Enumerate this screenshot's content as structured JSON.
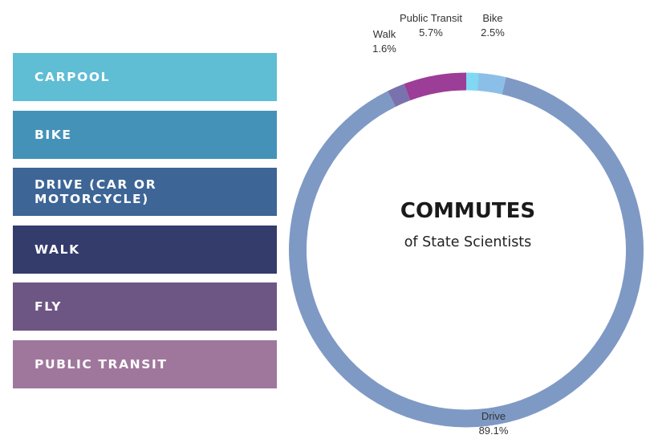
{
  "legend": {
    "items": [
      {
        "label": "CARPOOL",
        "color": "#5fbdd4"
      },
      {
        "label": "BIKE",
        "color": "#4592b8"
      },
      {
        "label": "DRIVE (CAR OR MOTORCYCLE)",
        "color": "#3d6596"
      },
      {
        "label": "WALK",
        "color": "#343c6c"
      },
      {
        "label": "FLY",
        "color": "#6e5684"
      },
      {
        "label": "PUBLIC TRANSIT",
        "color": "#a0779c"
      }
    ]
  },
  "center": {
    "title": "COMMUTES",
    "subtitle": "of State Scientists"
  },
  "chart_data": {
    "type": "pie",
    "style": "donut",
    "title": "COMMUTES",
    "subtitle": "of State Scientists",
    "start_angle_deg": 0,
    "slices": [
      {
        "name": "Carpool",
        "value": 1.1,
        "label": "",
        "value_label": "",
        "color": "#7fd8f4"
      },
      {
        "name": "Bike",
        "value": 2.5,
        "label": "Bike",
        "value_label": "2.5%",
        "color": "#8cbfe8"
      },
      {
        "name": "Drive",
        "value": 89.1,
        "label": "Drive",
        "value_label": "89.1%",
        "color": "#7f99c5"
      },
      {
        "name": "Walk",
        "value": 1.6,
        "label": "Walk",
        "value_label": "1.6%",
        "color": "#7a72ac"
      },
      {
        "name": "Public Transit",
        "value": 5.7,
        "label": "Public Transit",
        "value_label": "5.7%",
        "color": "#9c3d98"
      }
    ]
  }
}
